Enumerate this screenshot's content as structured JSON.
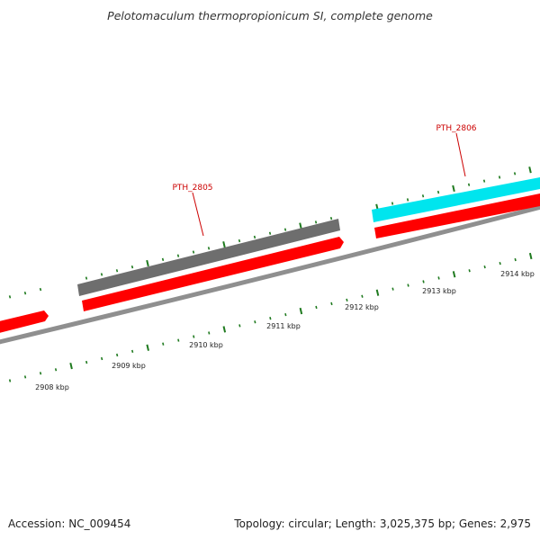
{
  "title": "Pelotomaculum thermopropionicum SI, complete genome",
  "footer": {
    "accession": "Accession: NC_009454",
    "summary": "Topology: circular; Length: 3,025,375 bp; Genes: 2,975"
  },
  "colors": {
    "backbone": "#8f8f8f",
    "tick": "#1f7a1f",
    "gene_plus_strand": "#ff0000",
    "gene_selected": "#00e5ee",
    "gene_other": "#6e6e6e",
    "label": "#cc0000",
    "axis_label": "#222222"
  },
  "scale_labels": [
    "2908 kbp",
    "2909 kbp",
    "2910 kbp",
    "2911 kbp",
    "2912 kbp",
    "2913 kbp",
    "2914 kbp"
  ],
  "gene_labels": {
    "pth2805": "PTH_2805",
    "pth2806": "PTH_2806"
  }
}
